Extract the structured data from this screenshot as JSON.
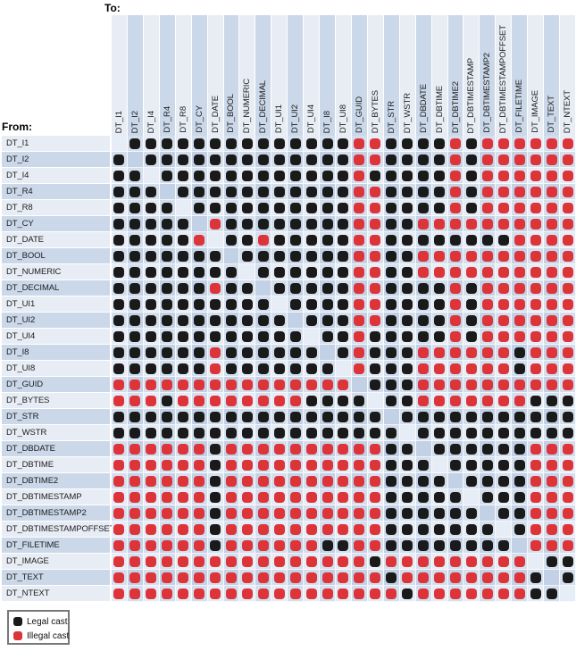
{
  "figure": {
    "to_label": "To:",
    "from_label": "From:"
  },
  "legend": {
    "items": [
      {
        "name": "legal-cast",
        "label": "Legal cast",
        "color": "#1a1a1a"
      },
      {
        "name": "illegal-cast",
        "label": "Illegal cast",
        "color": "#dc3439"
      }
    ]
  },
  "chart_data": {
    "type": "heatmap",
    "x_axis_label": "To:",
    "y_axis_label": "From:",
    "legend": [
      "Legal cast",
      "Illegal cast"
    ],
    "cell_encoding": {
      "B": "legal cast (black dot)",
      "R": "illegal cast (red dot)",
      ".": "same type / empty diagonal"
    },
    "colors": {
      "legal": "#1a1a1a",
      "illegal": "#dc3439",
      "diagonal_cell": "#e2e9f3"
    },
    "categories": [
      "DT_I1",
      "DT_I2",
      "DT_I4",
      "DT_R4",
      "DT_R8",
      "DT_CY",
      "DT_DATE",
      "DT_BOOL",
      "DT_NUMERIC",
      "DT_DECIMAL",
      "DT_UI1",
      "DT_UI2",
      "DT_UI4",
      "DT_I8",
      "DT_UI8",
      "DT_GUID",
      "DT_BYTES",
      "DT_STR",
      "DT_WSTR",
      "DT_DBDATE",
      "DT_DBTIME",
      "DT_DBTIME2",
      "DT_DBTIMESTAMP",
      "DT_DBTIMESTAMP2",
      "DT_DBTIMESTAMPOFFSET",
      "DT_FILETIME",
      "DT_IMAGE",
      "DT_TEXT",
      "DT_NTEXT"
    ],
    "matrix": [
      ".BBBBBBBBBBBBBBRRBBBBRBRRRRRR",
      "B.BBBBBBBBBBBBBRRBBBBRBRRRRRR",
      "BB.BBBBBBBBBBBBRBBBBBRBRRRRRR",
      "BBB.BBBBBBBBBBBRRBBBBRBRRRRRR",
      "BBBB.BBBBBBBBBBRRBBBBRBRRRRRR",
      "BBBBB.RBBBBBBBBRRBBRRRRRRRRRR",
      "BBBBBR.BBRBBBBBRRBBBBBBBBRRRR",
      "BBBBBBB.BBBBBBBRRBBRRRRRRRRRR",
      "BBBBBBBB.BBBBBBRRBBRRRRRRRRRR",
      "BBBBBBRBB.BBBBBRRBBBBRBRRRRRR",
      "BBBBBBBBBB.BBBBRRBBBBRBRRRRRR",
      "BBBBBBBBBBB.BBBRRBBBBRBRRRRRR",
      "BBBBBBBBBBBB.BBRBBBBBRBRRRRRR",
      "BBBBBBRBBBBBB.BRBBBRRRRRRBRRR",
      "BBBBBBRBBBBBBB.RBBBRRRRRRBRRR",
      "RRRRRRRRRRRRRRR.BBBRRRRRRRRRR",
      "RRRBRRRRRRRRBBBB.BBRRRRRRRBBB",
      "BBBBBBBBBBBBBBBBB.BBBBBBBBBBB",
      "BBBBBBBBBBBBBBBBBB.BBBBBBBBBB",
      "RRRRRRBRRRRRRRRRRBB.BBBBBBRRR",
      "RRRRRRBRRRRRRRRRRBBB.BBBBBRRR",
      "RRRRRRBRRRRRRRRRRBBBB.BBBBRRR",
      "RRRRRRBRRRRRRRRRRBBBBB.BBBRRR",
      "RRRRRRBRRRRRRRRRRBBBBBB.BBRRR",
      "RRRRRRBRRRRRRRRRRBBBBBBB.BRRR",
      "RRRRRRBRRRRRRBBRRBBBBBBBB.RRR",
      "RRRRRRRRRRRRRRRRBRRRRRRRRR.BB",
      "RRRRRRRRRRRRRRRRRBRRRRRRRRB.B",
      "RRRRRRRRRRRRRRRRRRBRRRRRRRBB."
    ]
  }
}
